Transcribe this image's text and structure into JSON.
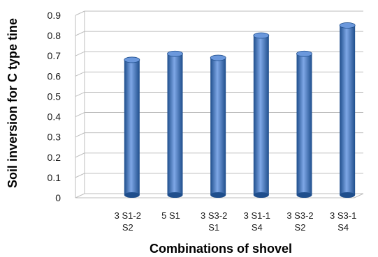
{
  "chart_data": {
    "type": "bar",
    "style": "3d-cylinder",
    "categories": [
      [
        "",
        ""
      ],
      [
        "3 S1-2",
        "S2"
      ],
      [
        "5 S1",
        ""
      ],
      [
        "3 S3-2",
        "S1"
      ],
      [
        "3 S1-1",
        "S4"
      ],
      [
        "3 S3-2",
        "S2"
      ],
      [
        "3 S3-1",
        "S4"
      ]
    ],
    "values": [
      null,
      0.67,
      0.7,
      0.68,
      0.79,
      0.7,
      0.84
    ],
    "xlabel": "Combinations of shovel",
    "ylabel": "Soil inversion for C type tine",
    "ylim": [
      0,
      0.9
    ],
    "yticks": [
      "0",
      "0.1",
      "0.2",
      "0.3",
      "0.4",
      "0.5",
      "0.6",
      "0.7",
      "0.8",
      "0.9"
    ],
    "grid": true,
    "legend": "none",
    "colors": {
      "bar_dark": "#1f4e8c",
      "bar_mid": "#3a72c4",
      "bar_light": "#7ea7e6",
      "bar_top": "#6b98dc",
      "grid": "#bdbdbd"
    }
  }
}
